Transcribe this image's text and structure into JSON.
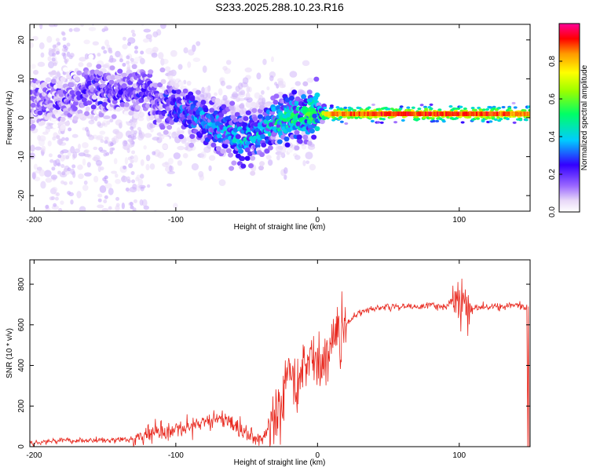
{
  "title": "S233.2025.288.10.23.R16",
  "chart_data": [
    {
      "type": "heatmap",
      "xlabel": "Height of straight line (km)",
      "ylabel": "Frequency (Hz)",
      "xlim": [
        -203,
        150
      ],
      "ylim": [
        -24,
        24
      ],
      "xticks": [
        -200,
        -100,
        0,
        100
      ],
      "yticks": [
        -20,
        -10,
        0,
        10,
        20
      ],
      "colorbar": {
        "label": "Normalized spectral amplitude",
        "range": [
          0,
          1
        ],
        "ticks": [
          "0.0",
          "0.2",
          "0.4",
          "0.6",
          "0.8"
        ]
      },
      "ridge_trace": {
        "x": [
          -200,
          -180,
          -160,
          -140,
          -125,
          -110,
          -95,
          -80,
          -65,
          -50,
          -40,
          -30,
          -20,
          -10,
          0,
          10,
          50,
          100,
          150
        ],
        "freq_hz": [
          4,
          4,
          8,
          6,
          8,
          3,
          2,
          -1,
          -3,
          -6,
          -4,
          -1,
          0,
          0.5,
          1,
          1,
          1,
          1,
          1
        ],
        "amplitude": [
          0.15,
          0.15,
          0.2,
          0.2,
          0.2,
          0.2,
          0.3,
          0.35,
          0.4,
          0.45,
          0.4,
          0.45,
          0.5,
          0.55,
          0.6,
          0.85,
          0.9,
          0.9,
          0.85
        ]
      }
    },
    {
      "type": "line",
      "xlabel": "Height of straight line (km)",
      "ylabel": "SNR (10 * v/v)",
      "xlim": [
        -203,
        150
      ],
      "ylim": [
        0,
        920
      ],
      "xticks": [
        -200,
        -100,
        0,
        100
      ],
      "yticks": [
        0,
        200,
        400,
        600,
        800
      ],
      "series": [
        {
          "name": "SNR",
          "color": "#e8281e",
          "x": [
            -203,
            -180,
            -150,
            -130,
            -120,
            -100,
            -90,
            -80,
            -70,
            -60,
            -50,
            -40,
            -35,
            -30,
            -25,
            -20,
            -15,
            -10,
            -5,
            0,
            5,
            10,
            15,
            20,
            25,
            30,
            40,
            50,
            60,
            70,
            80,
            90,
            95,
            100,
            105,
            110,
            120,
            130,
            140,
            148
          ],
          "y": [
            20,
            30,
            30,
            35,
            70,
            70,
            90,
            130,
            140,
            110,
            70,
            30,
            80,
            120,
            250,
            400,
            300,
            380,
            450,
            400,
            430,
            480,
            550,
            600,
            640,
            660,
            680,
            690,
            690,
            690,
            695,
            690,
            720,
            750,
            650,
            680,
            690,
            690,
            695,
            690
          ]
        }
      ]
    }
  ]
}
